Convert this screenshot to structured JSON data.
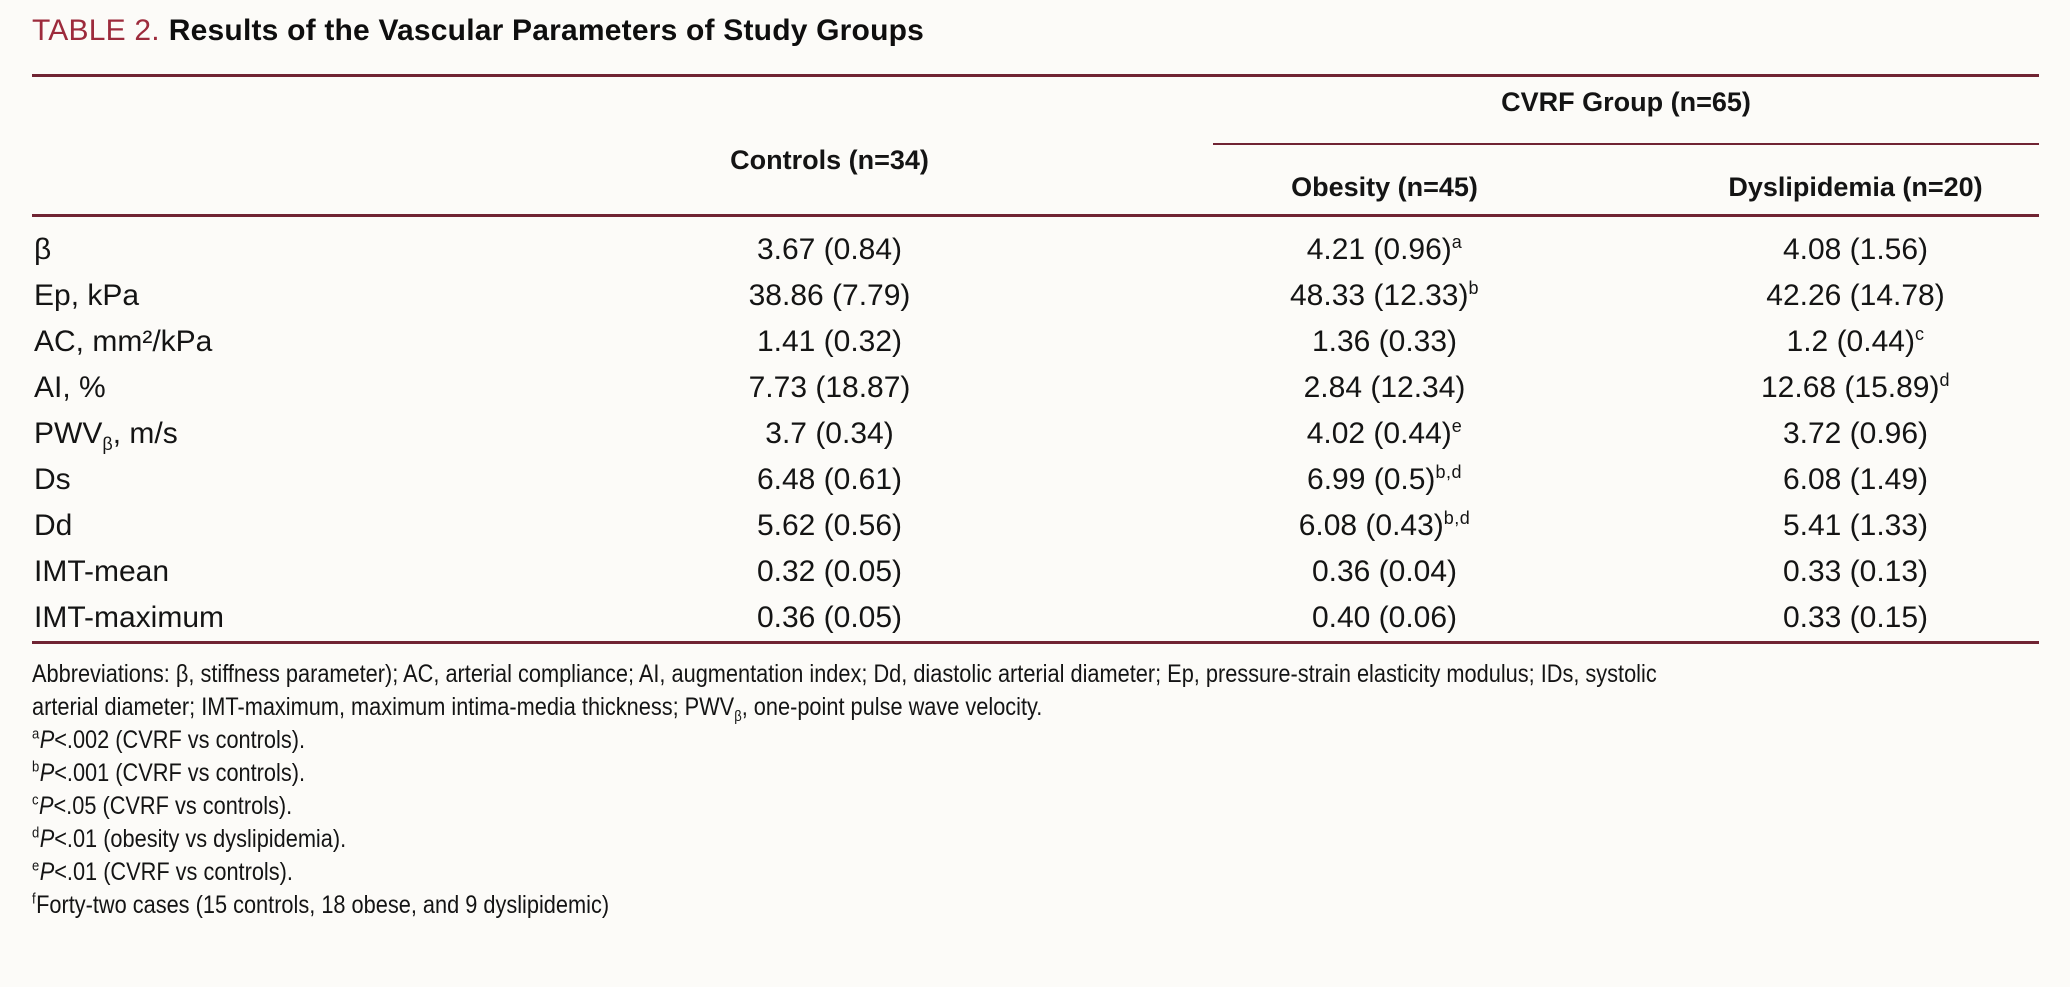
{
  "title": {
    "label": "TABLE 2.",
    "text": "Results of the Vascular Parameters of Study Groups"
  },
  "colors": {
    "title_red": "#9d2b3c",
    "rule_maroon": "#702433"
  },
  "header": {
    "controls": "Controls (n=34)",
    "cvrf_group": "CVRF Group (n=65)",
    "obesity": "Obesity (n=45)",
    "dyslipidemia": "Dyslipidemia (n=20)"
  },
  "rows": [
    {
      "param": {
        "pre": "β",
        "sub": "",
        "post": ""
      },
      "controls": {
        "val": "3.67 (0.84)",
        "sup": ""
      },
      "obesity": {
        "val": "4.21 (0.96)",
        "sup": "a"
      },
      "dyslipidemia": {
        "val": "4.08 (1.56)",
        "sup": ""
      }
    },
    {
      "param": {
        "pre": "Ep, kPa",
        "sub": "",
        "post": ""
      },
      "controls": {
        "val": "38.86 (7.79)",
        "sup": ""
      },
      "obesity": {
        "val": "48.33 (12.33)",
        "sup": "b"
      },
      "dyslipidemia": {
        "val": "42.26 (14.78)",
        "sup": ""
      }
    },
    {
      "param": {
        "pre": "AC, mm²/kPa",
        "sub": "",
        "post": ""
      },
      "controls": {
        "val": "1.41 (0.32)",
        "sup": ""
      },
      "obesity": {
        "val": "1.36 (0.33)",
        "sup": ""
      },
      "dyslipidemia": {
        "val": "1.2 (0.44)",
        "sup": "c"
      }
    },
    {
      "param": {
        "pre": "AI, %",
        "sub": "",
        "post": ""
      },
      "controls": {
        "val": "7.73 (18.87)",
        "sup": ""
      },
      "obesity": {
        "val": "2.84 (12.34)",
        "sup": ""
      },
      "dyslipidemia": {
        "val": "12.68 (15.89)",
        "sup": "d"
      }
    },
    {
      "param": {
        "pre": "PWV",
        "sub": "β",
        "post": ", m/s"
      },
      "controls": {
        "val": "3.7 (0.34)",
        "sup": ""
      },
      "obesity": {
        "val": "4.02 (0.44)",
        "sup": "e"
      },
      "dyslipidemia": {
        "val": "3.72 (0.96)",
        "sup": ""
      }
    },
    {
      "param": {
        "pre": "Ds",
        "sub": "",
        "post": ""
      },
      "controls": {
        "val": "6.48 (0.61)",
        "sup": ""
      },
      "obesity": {
        "val": "6.99 (0.5)",
        "sup": "b,d"
      },
      "dyslipidemia": {
        "val": "6.08 (1.49)",
        "sup": ""
      }
    },
    {
      "param": {
        "pre": "Dd",
        "sub": "",
        "post": ""
      },
      "controls": {
        "val": "5.62 (0.56)",
        "sup": ""
      },
      "obesity": {
        "val": "6.08 (0.43)",
        "sup": "b,d"
      },
      "dyslipidemia": {
        "val": "5.41 (1.33)",
        "sup": ""
      }
    },
    {
      "param": {
        "pre": "IMT-mean",
        "sub": "",
        "post": ""
      },
      "controls": {
        "val": "0.32 (0.05)",
        "sup": ""
      },
      "obesity": {
        "val": "0.36 (0.04)",
        "sup": ""
      },
      "dyslipidemia": {
        "val": "0.33 (0.13)",
        "sup": ""
      }
    },
    {
      "param": {
        "pre": "IMT-maximum",
        "sub": "",
        "post": ""
      },
      "controls": {
        "val": "0.36 (0.05)",
        "sup": ""
      },
      "obesity": {
        "val": "0.40 (0.06)",
        "sup": ""
      },
      "dyslipidemia": {
        "val": "0.33 (0.15)",
        "sup": ""
      }
    }
  ],
  "footnotes": {
    "abbr_line1": "Abbreviations: β, stiffness parameter); AC, arterial compliance; AI, augmentation index; Dd, diastolic arterial diameter; Ep, pressure-strain elasticity modulus; IDs, systolic",
    "abbr_line2_pre": "arterial diameter; IMT-maximum, maximum intima-media thickness; PWV",
    "abbr_line2_sub": "β",
    "abbr_line2_post": ", one-point pulse wave velocity.",
    "items": [
      {
        "sup": "a",
        "p": "P",
        "text": "<.002 (CVRF vs controls)."
      },
      {
        "sup": "b",
        "p": "P",
        "text": "<.001 (CVRF vs controls)."
      },
      {
        "sup": "c",
        "p": "P",
        "text": "<.05 (CVRF vs controls)."
      },
      {
        "sup": "d",
        "p": "P",
        "text": "<.01 (obesity vs dyslipidemia)."
      },
      {
        "sup": "e",
        "p": "P",
        "text": "<.01 (CVRF vs controls)."
      },
      {
        "sup": "f",
        "p": "",
        "text": "Forty-two cases (15 controls, 18 obese, and 9 dyslipidemic)"
      }
    ]
  }
}
